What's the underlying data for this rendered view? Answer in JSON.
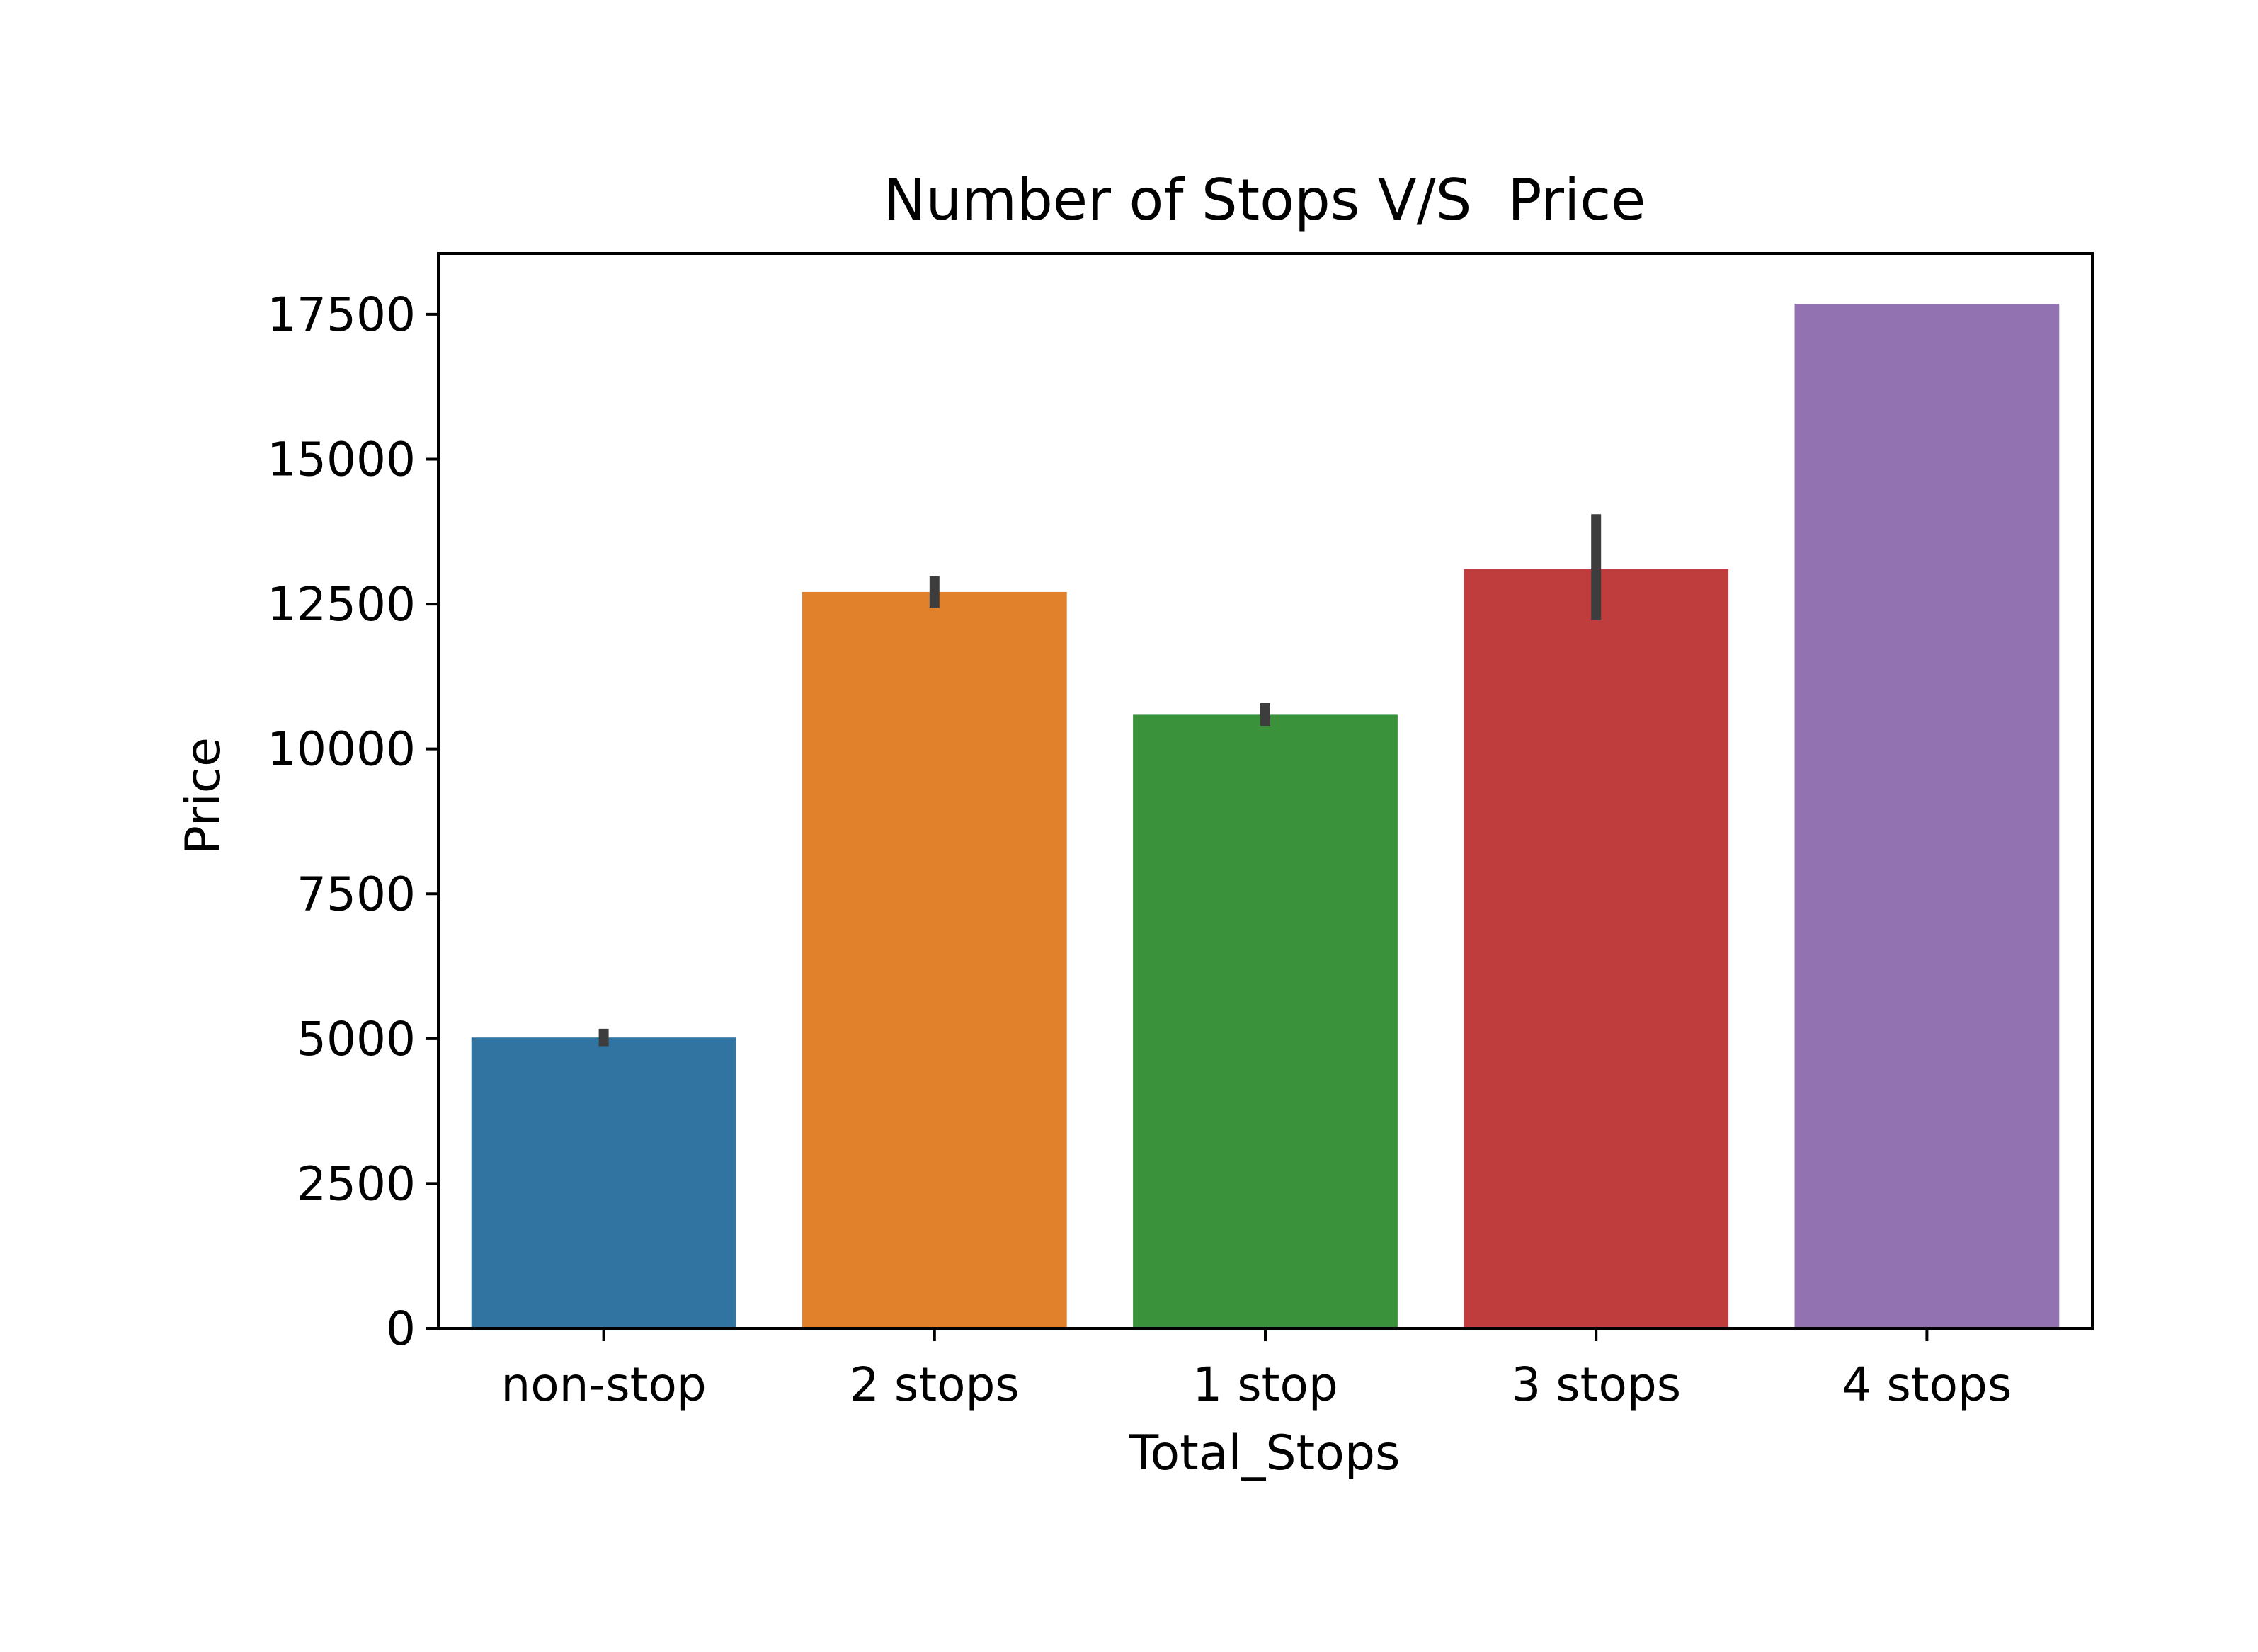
{
  "chart_data": {
    "type": "bar",
    "title": "Number of Stops V/S  Price",
    "xlabel": "Total_Stops",
    "ylabel": "Price",
    "categories": [
      "non-stop",
      "2 stops",
      "1 stop",
      "3 stops",
      "4 stops"
    ],
    "values": [
      5020,
      12710,
      10590,
      13100,
      17680
    ],
    "error_bars": [
      {
        "low": 4870,
        "high": 5170
      },
      {
        "low": 12440,
        "high": 12980
      },
      {
        "low": 10400,
        "high": 10790
      },
      {
        "low": 12220,
        "high": 14050
      },
      null
    ],
    "colors": [
      "#3274a1",
      "#e1812c",
      "#3a923a",
      "#c03d3e",
      "#9372b2"
    ],
    "error_color": "#3d3d3d",
    "ylim": [
      0,
      18550
    ],
    "yticks": [
      0,
      2500,
      5000,
      7500,
      10000,
      12500,
      15000,
      17500
    ],
    "ytick_labels": [
      "0",
      "2500",
      "5000",
      "7500",
      "10000",
      "12500",
      "15000",
      "17500"
    ],
    "grid": false,
    "legend": "none"
  }
}
